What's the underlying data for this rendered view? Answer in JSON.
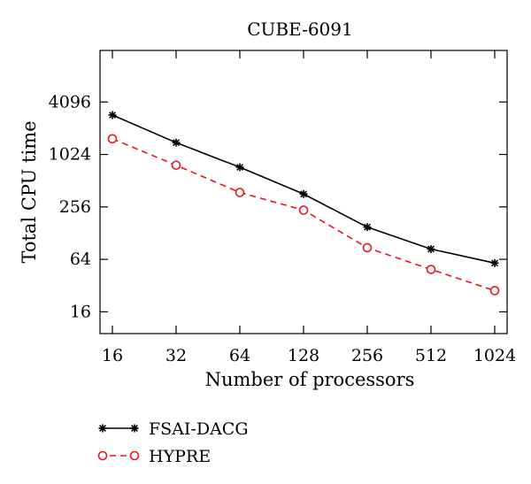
{
  "chart_data": {
    "type": "line",
    "title": "CUBE-6091",
    "xlabel": "Number of processors",
    "ylabel": "Total CPU time",
    "x_scale": "log2",
    "y_scale": "log2",
    "x": [
      16,
      32,
      64,
      128,
      256,
      512,
      1024
    ],
    "x_tick_labels": [
      "16",
      "32",
      "64",
      "128",
      "256",
      "512",
      "1024"
    ],
    "y_ticks": [
      16,
      64,
      256,
      1024,
      4096
    ],
    "y_tick_labels": [
      "16",
      "64",
      "256",
      "1024",
      "4096"
    ],
    "ylim": [
      9,
      16000
    ],
    "grid": false,
    "legend_position": "below-left",
    "series": [
      {
        "name": "FSAI-DACG",
        "color": "#000000",
        "line_style": "solid",
        "marker": "asterisk",
        "values": [
          2900,
          1400,
          730,
          360,
          150,
          84,
          58
        ]
      },
      {
        "name": "HYPRE",
        "color": "#e8141a",
        "line_style": "dashed",
        "marker": "circle",
        "values": [
          1550,
          770,
          375,
          235,
          87,
          49,
          28
        ]
      }
    ]
  }
}
